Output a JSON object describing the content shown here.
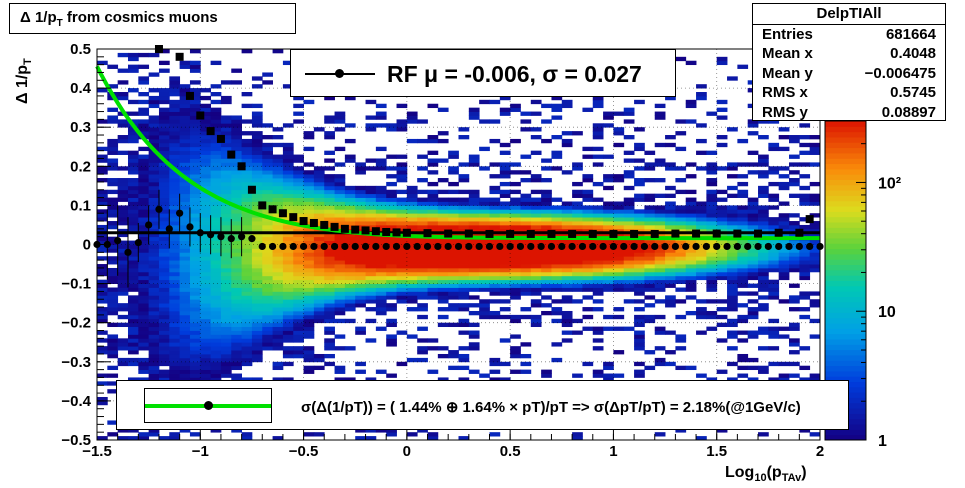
{
  "title": {
    "prefix": "Δ 1/p",
    "sub": "T",
    "suffix": " from cosmics muons"
  },
  "stats": {
    "name": "DelpTIAll",
    "rows": [
      {
        "label": "Entries",
        "value": "681664"
      },
      {
        "label": "Mean x",
        "value": "0.4048"
      },
      {
        "label": "Mean y",
        "value": "−0.006475"
      },
      {
        "label": "RMS x",
        "value": "0.5745"
      },
      {
        "label": "RMS y",
        "value": "0.08897"
      }
    ]
  },
  "fit_box": {
    "text": "RF μ = -0.006, σ =   0.027"
  },
  "legend": {
    "text": "σ(Δ(1/pT)) = ( 1.44% ⊕  1.64% × pT)/pT => σ(ΔpT/pT) =  2.18%(@1GeV/c)"
  },
  "axes": {
    "xlabel_main": "Log",
    "xlabel_sub1": "10",
    "xlabel_mid": "(p",
    "xlabel_sub2": "TAv",
    "xlabel_end": ")",
    "ylabel_main": "Δ 1/p",
    "ylabel_sub": "T"
  },
  "chart_data": {
    "type": "heatmap",
    "xlim": [
      -1.5,
      2.0
    ],
    "ylim": [
      -0.5,
      0.5
    ],
    "x_ticks": [
      "−1.5",
      "−1",
      "−0.5",
      "0",
      "0.5",
      "1",
      "1.5",
      "2"
    ],
    "x_tick_values": [
      -1.5,
      -1.0,
      -0.5,
      0,
      0.5,
      1.0,
      1.5,
      2.0
    ],
    "y_ticks": [
      "−0.5",
      "−0.4",
      "−0.3",
      "−0.2",
      "−0.1",
      "0",
      "0.1",
      "0.2",
      "0.3",
      "0.4",
      "0.5"
    ],
    "y_tick_values": [
      -0.5,
      -0.4,
      -0.3,
      -0.2,
      -0.1,
      0,
      0.1,
      0.2,
      0.3,
      0.4,
      0.5
    ],
    "z_scale": "log",
    "z_ticks": [
      "1",
      "10",
      "10²"
    ],
    "z_tick_values": [
      1,
      10,
      100
    ],
    "z_max": 300,
    "grid": true,
    "mean_points": [
      {
        "x": -1.5,
        "y": 0.0
      },
      {
        "x": -1.45,
        "y": 0.0
      },
      {
        "x": -1.4,
        "y": 0.01
      },
      {
        "x": -1.35,
        "y": -0.02
      },
      {
        "x": -1.3,
        "y": 0.005
      },
      {
        "x": -1.25,
        "y": 0.05
      },
      {
        "x": -1.2,
        "y": 0.09
      },
      {
        "x": -1.15,
        "y": 0.04
      },
      {
        "x": -1.1,
        "y": 0.08
      },
      {
        "x": -1.05,
        "y": 0.045
      },
      {
        "x": -1.0,
        "y": 0.03
      },
      {
        "x": -0.95,
        "y": 0.025
      },
      {
        "x": -0.9,
        "y": 0.02
      },
      {
        "x": -0.85,
        "y": 0.015
      },
      {
        "x": -0.8,
        "y": 0.02
      },
      {
        "x": -0.75,
        "y": 0.015
      },
      {
        "x": -0.7,
        "y": -0.005
      },
      {
        "x": -0.65,
        "y": -0.005
      },
      {
        "x": -0.6,
        "y": -0.005
      },
      {
        "x": -0.55,
        "y": -0.005
      },
      {
        "x": -0.5,
        "y": -0.005
      },
      {
        "x": -0.45,
        "y": -0.005
      },
      {
        "x": -0.4,
        "y": -0.005
      },
      {
        "x": -0.35,
        "y": -0.005
      },
      {
        "x": -0.3,
        "y": -0.005
      },
      {
        "x": -0.25,
        "y": -0.005
      },
      {
        "x": -0.2,
        "y": -0.005
      },
      {
        "x": -0.15,
        "y": -0.005
      },
      {
        "x": -0.1,
        "y": -0.005
      },
      {
        "x": -0.05,
        "y": -0.005
      },
      {
        "x": 0.0,
        "y": -0.005
      },
      {
        "x": 0.05,
        "y": -0.005
      },
      {
        "x": 0.1,
        "y": -0.005
      },
      {
        "x": 0.15,
        "y": -0.005
      },
      {
        "x": 0.2,
        "y": -0.005
      },
      {
        "x": 0.25,
        "y": -0.005
      },
      {
        "x": 0.3,
        "y": -0.005
      },
      {
        "x": 0.35,
        "y": -0.005
      },
      {
        "x": 0.4,
        "y": -0.005
      },
      {
        "x": 0.45,
        "y": -0.005
      },
      {
        "x": 0.5,
        "y": -0.005
      },
      {
        "x": 0.55,
        "y": -0.005
      },
      {
        "x": 0.6,
        "y": -0.005
      },
      {
        "x": 0.65,
        "y": -0.005
      },
      {
        "x": 0.7,
        "y": -0.005
      },
      {
        "x": 0.75,
        "y": -0.005
      },
      {
        "x": 0.8,
        "y": -0.005
      },
      {
        "x": 0.85,
        "y": -0.005
      },
      {
        "x": 0.9,
        "y": -0.005
      },
      {
        "x": 0.95,
        "y": -0.005
      },
      {
        "x": 1.0,
        "y": -0.005
      },
      {
        "x": 1.05,
        "y": -0.005
      },
      {
        "x": 1.1,
        "y": -0.005
      },
      {
        "x": 1.15,
        "y": -0.005
      },
      {
        "x": 1.2,
        "y": -0.005
      },
      {
        "x": 1.25,
        "y": -0.005
      },
      {
        "x": 1.3,
        "y": -0.005
      },
      {
        "x": 1.35,
        "y": -0.005
      },
      {
        "x": 1.4,
        "y": -0.005
      },
      {
        "x": 1.45,
        "y": -0.005
      },
      {
        "x": 1.5,
        "y": -0.005
      },
      {
        "x": 1.55,
        "y": -0.005
      },
      {
        "x": 1.6,
        "y": -0.005
      },
      {
        "x": 1.65,
        "y": -0.005
      },
      {
        "x": 1.7,
        "y": -0.005
      },
      {
        "x": 1.75,
        "y": -0.005
      },
      {
        "x": 1.8,
        "y": -0.005
      },
      {
        "x": 1.85,
        "y": -0.005
      },
      {
        "x": 1.9,
        "y": -0.005
      },
      {
        "x": 1.95,
        "y": -0.005
      },
      {
        "x": 2.0,
        "y": -0.005
      }
    ],
    "sigma_points": [
      {
        "x": -1.2,
        "y": 0.5
      },
      {
        "x": -1.1,
        "y": 0.48
      },
      {
        "x": -1.05,
        "y": 0.38
      },
      {
        "x": -1.0,
        "y": 0.33
      },
      {
        "x": -0.95,
        "y": 0.29
      },
      {
        "x": -0.9,
        "y": 0.27
      },
      {
        "x": -0.85,
        "y": 0.23
      },
      {
        "x": -0.8,
        "y": 0.2
      },
      {
        "x": -0.75,
        "y": 0.14
      },
      {
        "x": -0.7,
        "y": 0.1
      },
      {
        "x": -0.65,
        "y": 0.09
      },
      {
        "x": -0.6,
        "y": 0.08
      },
      {
        "x": -0.55,
        "y": 0.07
      },
      {
        "x": -0.5,
        "y": 0.06
      },
      {
        "x": -0.45,
        "y": 0.055
      },
      {
        "x": -0.4,
        "y": 0.05
      },
      {
        "x": -0.35,
        "y": 0.045
      },
      {
        "x": -0.3,
        "y": 0.04
      },
      {
        "x": -0.25,
        "y": 0.038
      },
      {
        "x": -0.2,
        "y": 0.036
      },
      {
        "x": -0.15,
        "y": 0.034
      },
      {
        "x": -0.1,
        "y": 0.032
      },
      {
        "x": -0.05,
        "y": 0.031
      },
      {
        "x": 0.0,
        "y": 0.03
      },
      {
        "x": 0.1,
        "y": 0.029
      },
      {
        "x": 0.2,
        "y": 0.028
      },
      {
        "x": 0.3,
        "y": 0.028
      },
      {
        "x": 0.4,
        "y": 0.027
      },
      {
        "x": 0.5,
        "y": 0.027
      },
      {
        "x": 0.6,
        "y": 0.027
      },
      {
        "x": 0.7,
        "y": 0.027
      },
      {
        "x": 0.8,
        "y": 0.027
      },
      {
        "x": 0.9,
        "y": 0.027
      },
      {
        "x": 1.0,
        "y": 0.027
      },
      {
        "x": 1.1,
        "y": 0.027
      },
      {
        "x": 1.2,
        "y": 0.027
      },
      {
        "x": 1.3,
        "y": 0.028
      },
      {
        "x": 1.4,
        "y": 0.028
      },
      {
        "x": 1.5,
        "y": 0.028
      },
      {
        "x": 1.6,
        "y": 0.028
      },
      {
        "x": 1.7,
        "y": 0.028
      },
      {
        "x": 1.8,
        "y": 0.03
      },
      {
        "x": 1.9,
        "y": 0.03
      },
      {
        "x": 1.95,
        "y": 0.065
      }
    ],
    "rf_line_y": 0.03,
    "fit_curve": {
      "a_percent": 1.44,
      "b_percent": 1.64,
      "x_start": -1.5,
      "x_end": 2.0
    }
  },
  "colors": {
    "fit": "#00e000",
    "points": "#000000",
    "axis": "#000000"
  }
}
